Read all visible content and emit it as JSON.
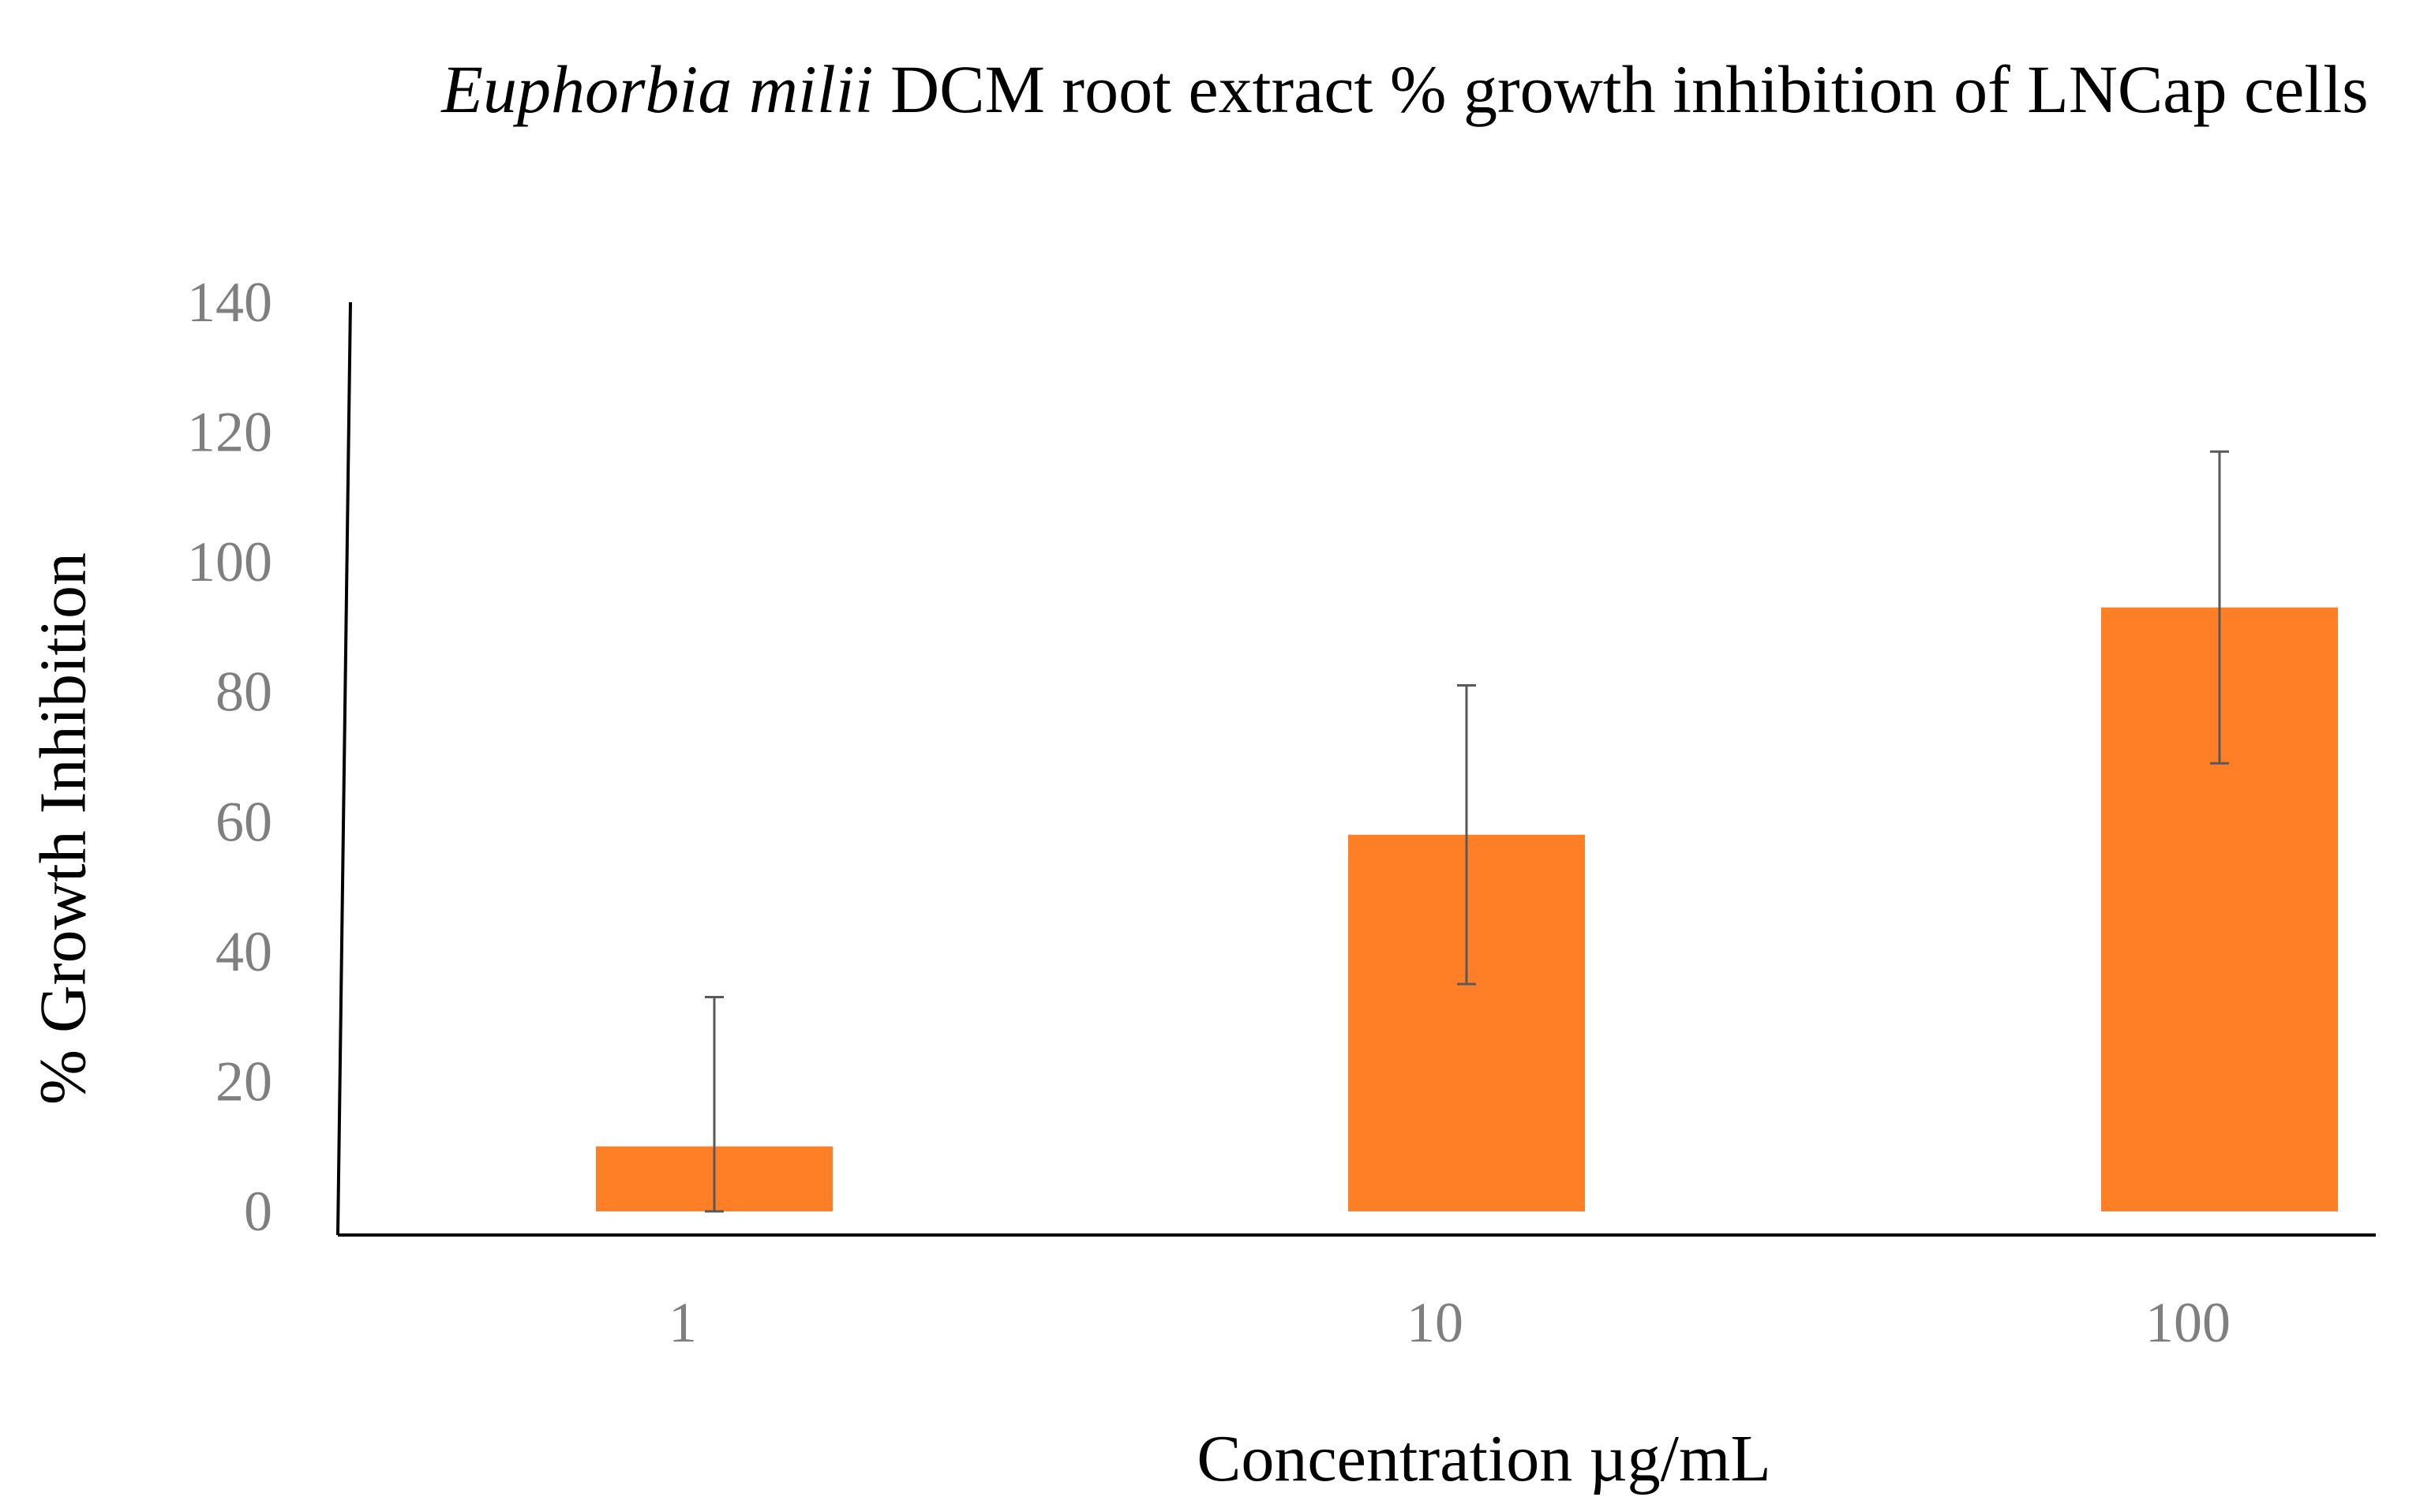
{
  "chart_data": {
    "type": "bar",
    "title_italic": "Euphorbia milii",
    "title_rest": " DCM root extract % growth inhibition of LNCap cells",
    "xlabel": "Concentration µg/mL",
    "ylabel": "% Growth Inhibition",
    "categories": [
      "1",
      "10",
      "100"
    ],
    "values": [
      10,
      58,
      93
    ],
    "errors": [
      23,
      23,
      24
    ],
    "ylim": [
      0,
      140
    ],
    "yticks": [
      0,
      20,
      40,
      60,
      80,
      100,
      120,
      140
    ],
    "bar_color": "#ff7f27",
    "error_color": "#595959",
    "axis_color": "#000000",
    "grid": false
  }
}
